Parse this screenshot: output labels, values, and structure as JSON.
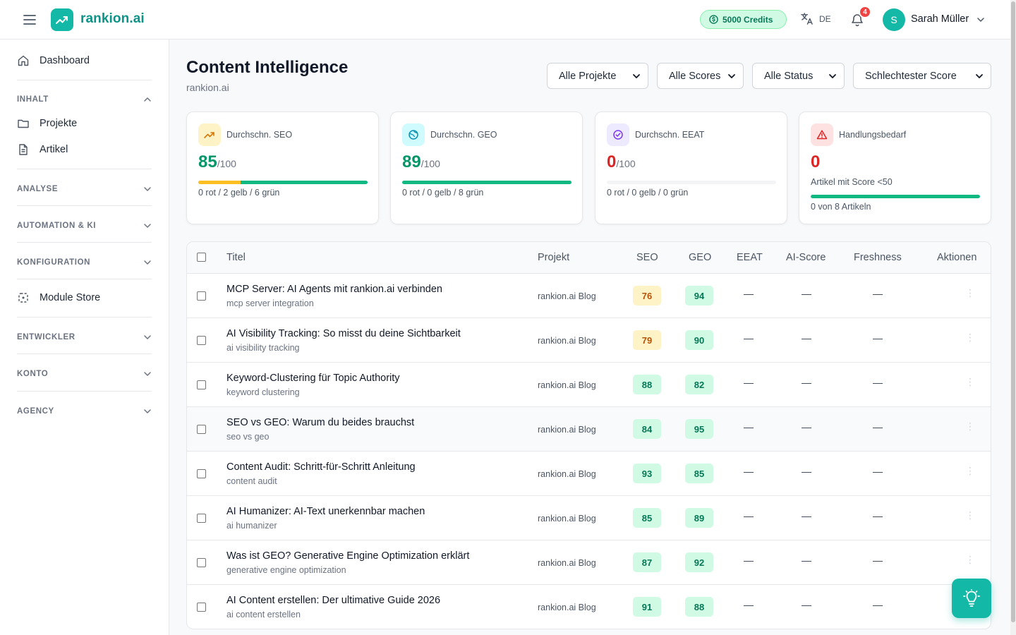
{
  "app": {
    "name": "rankion.ai",
    "brand_color": "#14b8a6"
  },
  "header": {
    "credits": "5000 Credits",
    "language": "DE",
    "notifications_count": "4",
    "user_initial": "S",
    "user_name": "Sarah Müller"
  },
  "sidebar": {
    "dashboard": "Dashboard",
    "sections": {
      "inhalt": "INHALT",
      "analyse": "ANALYSE",
      "automation": "AUTOMATION & KI",
      "konfiguration": "KONFIGURATION",
      "entwickler": "ENTWICKLER",
      "konto": "KONTO",
      "agency": "AGENCY"
    },
    "projekte": "Projekte",
    "artikel": "Artikel",
    "module_store": "Module Store"
  },
  "page": {
    "title": "Content Intelligence",
    "subtitle": "rankion.ai"
  },
  "filters": {
    "projects": "Alle Projekte",
    "scores": "Alle Scores",
    "status": "Alle Status",
    "sort": "Schlechtester Score"
  },
  "cards": {
    "seo": {
      "label": "Durchschn. SEO",
      "value": "85",
      "unit": "/100",
      "foot": "0 rot / 2 gelb / 6 grün",
      "red": 0,
      "yellow": 2,
      "green": 6
    },
    "geo": {
      "label": "Durchschn. GEO",
      "value": "89",
      "unit": "/100",
      "foot": "0 rot / 0 gelb / 8 grün",
      "red": 0,
      "yellow": 0,
      "green": 8
    },
    "eeat": {
      "label": "Durchschn. EEAT",
      "value": "0",
      "unit": "/100",
      "foot": "0 rot / 0 gelb / 0 grün",
      "red": 0,
      "yellow": 0,
      "green": 0
    },
    "action": {
      "label": "Handlungsbedarf",
      "value": "0",
      "mid": "Artikel mit Score <50",
      "foot": "0 von 8 Artikeln",
      "progress": 1.0
    }
  },
  "table": {
    "headers": {
      "title": "Titel",
      "project": "Projekt",
      "seo": "SEO",
      "geo": "GEO",
      "eeat": "EEAT",
      "ai_score": "AI-Score",
      "freshness": "Freshness",
      "actions": "Aktionen"
    },
    "empty": "—",
    "more": "⋮",
    "rows": [
      {
        "title": "MCP Server: AI Agents mit rankion.ai verbinden",
        "keyword": "mcp server integration",
        "project": "rankion.ai Blog",
        "seo": "76",
        "geo": "94",
        "seo_status": "yellow",
        "geo_status": "green"
      },
      {
        "title": "AI Visibility Tracking: So misst du deine Sichtbarkeit",
        "keyword": "ai visibility tracking",
        "project": "rankion.ai Blog",
        "seo": "79",
        "geo": "90",
        "seo_status": "yellow",
        "geo_status": "green"
      },
      {
        "title": "Keyword-Clustering für Topic Authority",
        "keyword": "keyword clustering",
        "project": "rankion.ai Blog",
        "seo": "88",
        "geo": "82",
        "seo_status": "green",
        "geo_status": "green"
      },
      {
        "title": "SEO vs GEO: Warum du beides brauchst",
        "keyword": "seo vs geo",
        "project": "rankion.ai Blog",
        "seo": "84",
        "geo": "95",
        "seo_status": "green",
        "geo_status": "green"
      },
      {
        "title": "Content Audit: Schritt-für-Schritt Anleitung",
        "keyword": "content audit",
        "project": "rankion.ai Blog",
        "seo": "93",
        "geo": "85",
        "seo_status": "green",
        "geo_status": "green"
      },
      {
        "title": "AI Humanizer: AI-Text unerkennbar machen",
        "keyword": "ai humanizer",
        "project": "rankion.ai Blog",
        "seo": "85",
        "geo": "89",
        "seo_status": "green",
        "geo_status": "green"
      },
      {
        "title": "Was ist GEO? Generative Engine Optimization erklärt",
        "keyword": "generative engine optimization",
        "project": "rankion.ai Blog",
        "seo": "87",
        "geo": "92",
        "seo_status": "green",
        "geo_status": "green"
      },
      {
        "title": "AI Content erstellen: Der ultimative Guide 2026",
        "keyword": "ai content erstellen",
        "project": "rankion.ai Blog",
        "seo": "91",
        "geo": "88",
        "seo_status": "green",
        "geo_status": "green"
      }
    ]
  }
}
